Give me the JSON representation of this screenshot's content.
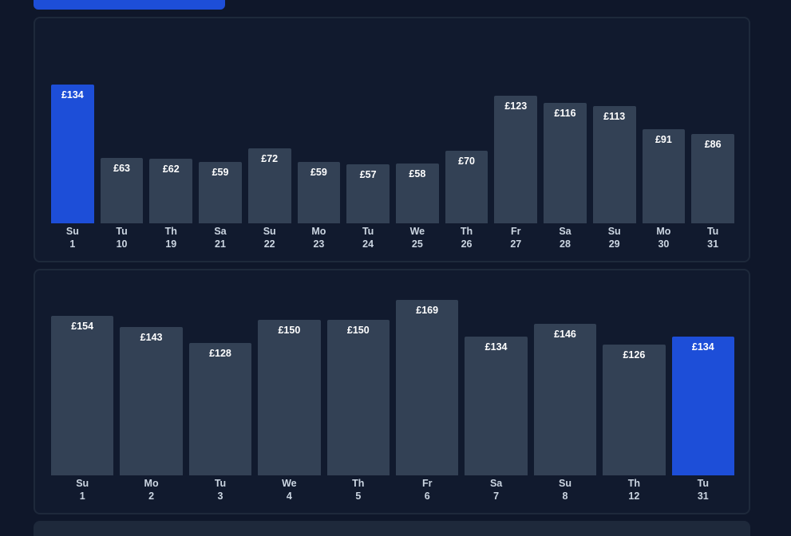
{
  "colors": {
    "background": "#0f172a",
    "panel": "#111a2e",
    "panel_border": "#1e293b",
    "bar": "#334155",
    "bar_selected": "#1d4ed8",
    "text": "#ffffff",
    "label_text": "#cbd5e1"
  },
  "chart_data": [
    {
      "type": "bar",
      "categories": [
        "Su 1",
        "Tu 10",
        "Th 19",
        "Sa 21",
        "Su 22",
        "Mo 23",
        "Tu 24",
        "We 25",
        "Th 26",
        "Fr 27",
        "Sa 28",
        "Su 29",
        "Mo 30",
        "Tu 31"
      ],
      "bars": [
        {
          "weekday": "Su",
          "day": "1",
          "value": 134,
          "label": "£134",
          "selected": true
        },
        {
          "weekday": "Tu",
          "day": "10",
          "value": 63,
          "label": "£63",
          "selected": false
        },
        {
          "weekday": "Th",
          "day": "19",
          "value": 62,
          "label": "£62",
          "selected": false
        },
        {
          "weekday": "Sa",
          "day": "21",
          "value": 59,
          "label": "£59",
          "selected": false
        },
        {
          "weekday": "Su",
          "day": "22",
          "value": 72,
          "label": "£72",
          "selected": false
        },
        {
          "weekday": "Mo",
          "day": "23",
          "value": 59,
          "label": "£59",
          "selected": false
        },
        {
          "weekday": "Tu",
          "day": "24",
          "value": 57,
          "label": "£57",
          "selected": false
        },
        {
          "weekday": "We",
          "day": "25",
          "value": 58,
          "label": "£58",
          "selected": false
        },
        {
          "weekday": "Th",
          "day": "26",
          "value": 70,
          "label": "£70",
          "selected": false
        },
        {
          "weekday": "Fr",
          "day": "27",
          "value": 123,
          "label": "£123",
          "selected": false
        },
        {
          "weekday": "Sa",
          "day": "28",
          "value": 116,
          "label": "£116",
          "selected": false
        },
        {
          "weekday": "Su",
          "day": "29",
          "value": 113,
          "label": "£113",
          "selected": false
        },
        {
          "weekday": "Mo",
          "day": "30",
          "value": 91,
          "label": "£91",
          "selected": false
        },
        {
          "weekday": "Tu",
          "day": "31",
          "value": 86,
          "label": "£86",
          "selected": false
        }
      ]
    },
    {
      "type": "bar",
      "categories": [
        "Su 1",
        "Mo 2",
        "Tu 3",
        "We 4",
        "Th 5",
        "Fr 6",
        "Sa 7",
        "Su 8",
        "Th 12",
        "Tu 31"
      ],
      "bars": [
        {
          "weekday": "Su",
          "day": "1",
          "value": 154,
          "label": "£154",
          "selected": false
        },
        {
          "weekday": "Mo",
          "day": "2",
          "value": 143,
          "label": "£143",
          "selected": false
        },
        {
          "weekday": "Tu",
          "day": "3",
          "value": 128,
          "label": "£128",
          "selected": false
        },
        {
          "weekday": "We",
          "day": "4",
          "value": 150,
          "label": "£150",
          "selected": false
        },
        {
          "weekday": "Th",
          "day": "5",
          "value": 150,
          "label": "£150",
          "selected": false
        },
        {
          "weekday": "Fr",
          "day": "6",
          "value": 169,
          "label": "£169",
          "selected": false
        },
        {
          "weekday": "Sa",
          "day": "7",
          "value": 134,
          "label": "£134",
          "selected": false
        },
        {
          "weekday": "Su",
          "day": "8",
          "value": 146,
          "label": "£146",
          "selected": false
        },
        {
          "weekday": "Th",
          "day": "12",
          "value": 126,
          "label": "£126",
          "selected": false
        },
        {
          "weekday": "Tu",
          "day": "31",
          "value": 134,
          "label": "£134",
          "selected": true
        }
      ]
    }
  ]
}
